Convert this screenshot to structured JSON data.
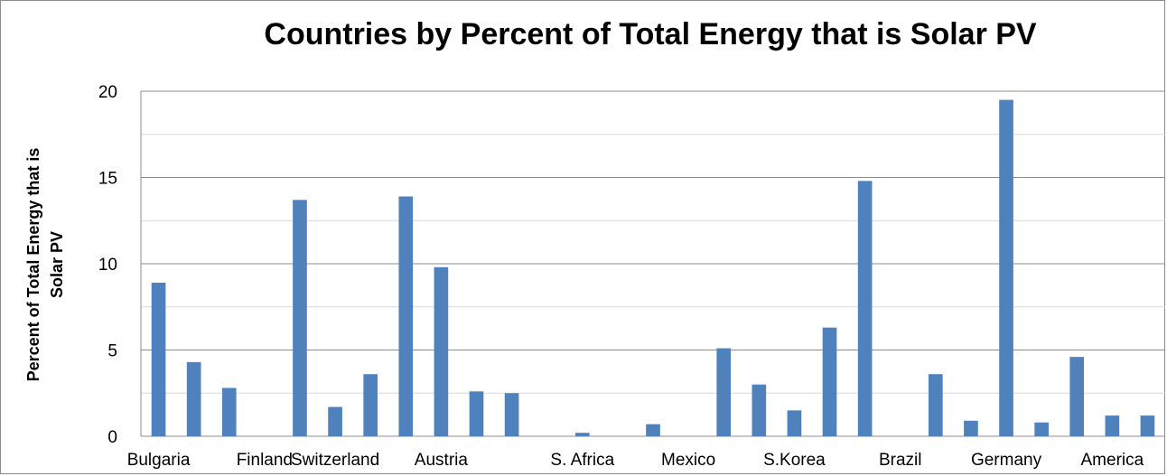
{
  "chart_data": {
    "type": "bar",
    "title": "Countries by Percent of Total Energy that is Solar PV",
    "ylabel_lines": [
      "Percent of Total Energy that is",
      "Solar PV"
    ],
    "xlabel": "",
    "ylim": [
      0,
      20
    ],
    "yticks": [
      0,
      5,
      10,
      15,
      20
    ],
    "minor_gridlines": [
      2.5,
      7.5,
      12.5,
      17.5
    ],
    "grid": true,
    "bar_color": "#4f81bd",
    "categories": [
      "Bulgaria",
      "",
      "",
      "Finland",
      "",
      "Switzerland",
      "",
      "",
      "Austria",
      "",
      "",
      "",
      "S. Africa",
      "",
      "",
      "Mexico",
      "",
      "",
      "S.Korea",
      "",
      "",
      "Brazil",
      "",
      "",
      "Germany",
      "",
      "",
      "America",
      ""
    ],
    "values": [
      8.9,
      4.3,
      2.8,
      0,
      13.7,
      1.7,
      3.6,
      13.9,
      9.8,
      2.6,
      2.5,
      0,
      0.2,
      0,
      0.7,
      0,
      5.1,
      3.0,
      1.5,
      6.3,
      14.8,
      0,
      3.6,
      0.9,
      19.5,
      0.8,
      4.6,
      1.2,
      1.2
    ]
  }
}
